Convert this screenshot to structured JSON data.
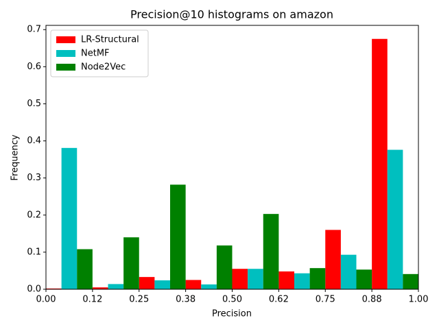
{
  "chart_data": {
    "type": "histogram",
    "title": "Precision@10 histograms on amazon",
    "xlabel": "Precision",
    "ylabel": "Frequency",
    "bins": [
      0,
      0.125,
      0.25,
      0.375,
      0.5,
      0.625,
      0.75,
      0.875,
      1
    ],
    "series": [
      {
        "name": "LR-Structural",
        "color": "#ff0000",
        "values": [
          0.002,
          0.005,
          0.033,
          0.025,
          0.055,
          0.048,
          0.16,
          0.675
        ]
      },
      {
        "name": "NetMF",
        "color": "#00bfbf",
        "values": [
          0.381,
          0.014,
          0.024,
          0.013,
          0.055,
          0.043,
          0.093,
          0.376
        ]
      },
      {
        "name": "Node2Vec",
        "color": "#008000",
        "values": [
          0.108,
          0.14,
          0.282,
          0.118,
          0.203,
          0.057,
          0.053,
          0.041
        ]
      }
    ],
    "xlim": [
      0,
      1
    ],
    "xticks": [
      {
        "value": 0,
        "label": "0.00"
      },
      {
        "value": 0.125,
        "label": "0.12"
      },
      {
        "value": 0.25,
        "label": "0.25"
      },
      {
        "value": 0.375,
        "label": "0.38"
      },
      {
        "value": 0.5,
        "label": "0.50"
      },
      {
        "value": 0.625,
        "label": "0.62"
      },
      {
        "value": 0.75,
        "label": "0.75"
      },
      {
        "value": 0.875,
        "label": "0.88"
      },
      {
        "value": 1,
        "label": "1.00"
      }
    ],
    "ylim": [
      0,
      0.7115
    ],
    "yticks": [
      {
        "value": 0,
        "label": "0.0"
      },
      0.1,
      0.2,
      0.3,
      0.4,
      0.5,
      0.6,
      0.7
    ],
    "legend": "upper left",
    "grid": false
  }
}
